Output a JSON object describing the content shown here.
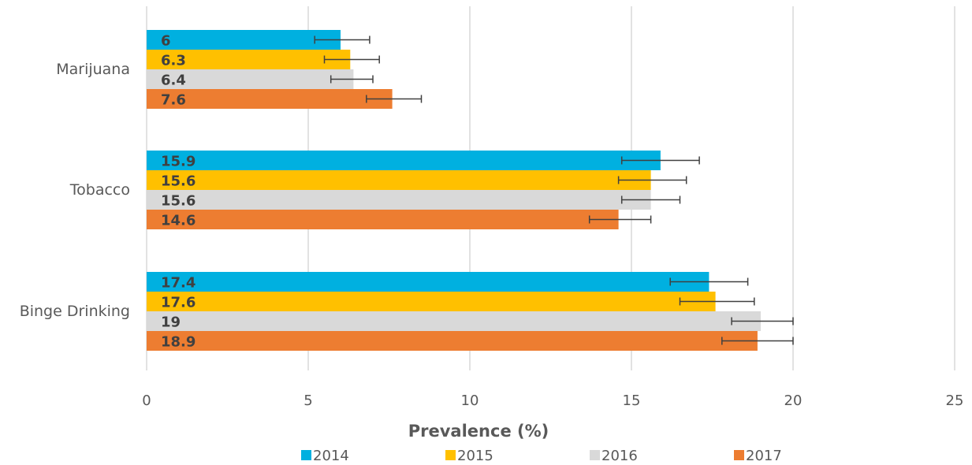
{
  "chart_data": {
    "type": "bar",
    "orientation": "horizontal",
    "categories": [
      "Marijuana",
      "Tobacco",
      "Binge Drinking"
    ],
    "series": [
      {
        "name": "2014",
        "color": "#00B0E0",
        "values": [
          6,
          15.9,
          17.4
        ],
        "error_low": [
          5.2,
          14.7,
          16.2
        ],
        "error_high": [
          6.9,
          17.1,
          18.6
        ]
      },
      {
        "name": "2015",
        "color": "#FFC000",
        "values": [
          6.3,
          15.6,
          17.6
        ],
        "error_low": [
          5.5,
          14.6,
          16.5
        ],
        "error_high": [
          7.2,
          16.7,
          18.8
        ]
      },
      {
        "name": "2016",
        "color": "#D9D9D9",
        "values": [
          6.4,
          15.6,
          19
        ],
        "error_low": [
          5.7,
          14.7,
          18.1
        ],
        "error_high": [
          7.0,
          16.5,
          20.0
        ]
      },
      {
        "name": "2017",
        "color": "#ED7D31",
        "values": [
          7.6,
          14.6,
          18.9
        ],
        "error_low": [
          6.8,
          13.7,
          17.8
        ],
        "error_high": [
          8.5,
          15.6,
          20.0
        ]
      }
    ],
    "data_labels": [
      [
        "6",
        "15.9",
        "17.4"
      ],
      [
        "6.3",
        "15.6",
        "17.6"
      ],
      [
        "6.4",
        "15.6",
        "19"
      ],
      [
        "7.6",
        "14.6",
        "18.9"
      ]
    ],
    "xlabel": "Prevalence (%)",
    "ylabel": "",
    "xlim": [
      0,
      25
    ],
    "x_ticks": [
      "0",
      "5",
      "10",
      "15",
      "20",
      "25"
    ],
    "grid": "vertical",
    "legend": "bottom"
  }
}
